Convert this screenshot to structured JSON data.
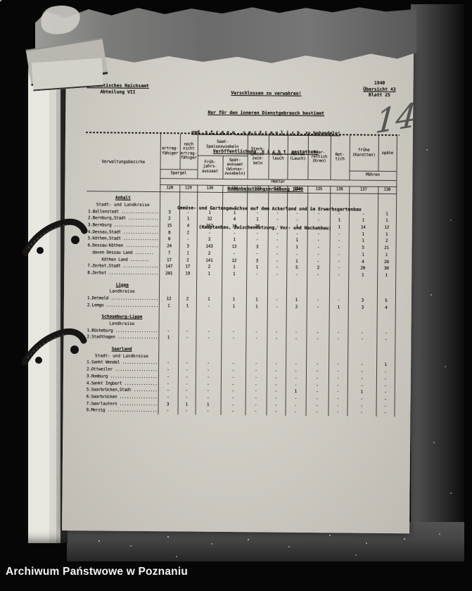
{
  "archive_label": "Archiwum Państwowe w Poznaniu",
  "colors": {
    "photo_background": "#060606",
    "page_paper": "#ccc9c1",
    "ink": "#221f1a",
    "rule": "#2e2a24",
    "archive_text": "#f4f4f4"
  },
  "page": {
    "agency": "Statistisches Reichsamt",
    "department": "Abteilung VII",
    "classification": [
      "Verschlossen zu verwahren!",
      "Nur für den inneren Dienstgebrauch bestimmt",
      "und  s t r e n g   v e r t r a u l i c h  zu behandeln!",
      "Veröffentlichung  n i c h t  gestattet!"
    ],
    "ref_year": "1940",
    "ref_overview": "Übersicht 43",
    "ref_sheet": "Blatt 25",
    "handwritten_number": "14",
    "title": "Bodenbenutzungserhebung 1940",
    "subtitle": "Gemüse- und Gartengewächse auf dem Ackerland und im Erwerbsgartenbau",
    "subtitle2": "(Hauptanbau, Zwischennutzung, Vor- und Nachanbau)"
  },
  "table": {
    "row_header": "Verwaltungsbezirke",
    "headers": {
      "spargel_yielding": "ertrag-\nfähiger",
      "spargel_not_yet": "noch\nnicht\nertrag-\nfähiger",
      "spargel_group": "Spargel",
      "saat_group": "Saat-\nSpeisezwiebeln",
      "saat_spring": "Früh-\njahrs-\naussaat",
      "saat_late": "Spät-\naussaat\n(Winter-\nzwiebeln)",
      "steck": "Steck-\nspeise-\nzwie-\nbeln",
      "knoblauch": "Knob-\nlauch",
      "porree": "Porree\n(Lauch)",
      "meerrettich": "Meer-\nrettich\n(Kren)",
      "rettich": "Ret-\ntich",
      "moehren_early": "frühe\n(Karotten)",
      "moehren_late": "späte",
      "moehren_group": "Möhren",
      "unit": "Hektar"
    },
    "col_numbers": [
      "128",
      "129",
      "130",
      "131",
      "132",
      "133",
      "134",
      "135",
      "136",
      "137",
      "138"
    ],
    "sections": [
      {
        "name": "Anhalt",
        "sub": "Stadt- und Landkreise",
        "rows": [
          {
            "name": "1.Ballenstedt ................",
            "values": [
              "3",
              "-",
              "1",
              "1",
              "-",
              "-",
              "-",
              "-",
              "-",
              "-",
              "1"
            ]
          },
          {
            "name": "2.Bernburg,Stadt .............",
            "values": [
              "2",
              "1",
              "32",
              "4",
              "1",
              "-",
              "-",
              "-",
              "1",
              "1",
              "1"
            ]
          },
          {
            "name": "3.Bernburg ...................",
            "values": [
              "15",
              "4",
              "367",
              "16",
              "20",
              "-",
              "1",
              "-",
              "1",
              "14",
              "12"
            ]
          },
          {
            "name": "4.Dessau,Stadt ...............",
            "values": [
              "8",
              "2",
              "-",
              "-",
              "-",
              "-",
              "-",
              "-",
              "-",
              "1",
              "1"
            ]
          },
          {
            "name": "5.Köthen,Stadt ...............",
            "values": [
              "8",
              "-",
              "2",
              "1",
              "-",
              "-",
              "1",
              "-",
              "-",
              "1",
              "2"
            ]
          },
          {
            "name": "6.Dessau-Köthen ..............",
            "values": [
              "24",
              "3",
              "143",
              "12",
              "3",
              "-",
              "1",
              "-",
              "-",
              "5",
              "21"
            ]
          },
          {
            "name": "  davon Dessau Land ........",
            "values": [
              "7",
              "1",
              "2",
              "-",
              "-",
              "-",
              "-",
              "-",
              "-",
              "1",
              "1"
            ]
          },
          {
            "name": "      Köthen Land ........",
            "values": [
              "17",
              "2",
              "141",
              "12",
              "3",
              "-",
              "1",
              "-",
              "-",
              "4",
              "20"
            ]
          },
          {
            "name": "7.Zerbst,Stadt ...............",
            "values": [
              "147",
              "17",
              "2",
              "1",
              "1",
              "-",
              "5",
              "2",
              "-",
              "20",
              "30"
            ]
          },
          {
            "name": "8.Zerbst .....................",
            "values": [
              "201",
              "19",
              "1",
              "1",
              "-",
              "-",
              "-",
              "-",
              "-",
              "1",
              "1"
            ]
          }
        ]
      },
      {
        "name": "Lippe",
        "sub": "Landkreise",
        "rows": [
          {
            "name": "1.Detmold ....................",
            "values": [
              "12",
              "2",
              "1",
              "1",
              "1",
              "-",
              "1",
              "-",
              "-",
              "3",
              "5"
            ]
          },
          {
            "name": "2.Lemgo ......................",
            "values": [
              "1",
              "1",
              "-",
              "1",
              "1",
              "-",
              "2",
              "-",
              "1",
              "3",
              "4"
            ]
          }
        ]
      },
      {
        "name": "Schaumburg-Lippe",
        "sub": "Landkreise",
        "rows": [
          {
            "name": "1.Bückeburg ..................",
            "values": [
              "-",
              "-",
              "-",
              "-",
              "-",
              "-",
              "-",
              "-",
              "-",
              "-",
              "-"
            ]
          },
          {
            "name": "2.Stadthagen .................",
            "values": [
              "1",
              "-",
              "-",
              "-",
              "-",
              "-",
              "-",
              "-",
              "-",
              "-",
              "-"
            ]
          }
        ]
      },
      {
        "name": "Saarland",
        "sub": "Stadt- und Landkreise",
        "rows": [
          {
            "name": "1.Sankt Wendel ...............",
            "values": [
              "-",
              "-",
              "-",
              "-",
              "-",
              "-",
              "-",
              "-",
              "-",
              "-",
              "1"
            ]
          },
          {
            "name": "2.Ottweiler ..................",
            "values": [
              "-",
              "-",
              "-",
              "-",
              "-",
              "-",
              "-",
              "-",
              "-",
              "-",
              "-"
            ]
          },
          {
            "name": "3.Homburg ....................",
            "values": [
              "-",
              "-",
              "-",
              "-",
              "-",
              "-",
              "-",
              "-",
              "-",
              "-",
              "-"
            ]
          },
          {
            "name": "4.Sankt Ingbert ..............",
            "values": [
              "-",
              "-",
              "-",
              "-",
              "-",
              "-",
              "-",
              "-",
              "-",
              "-",
              "-"
            ]
          },
          {
            "name": "5.Saarbrücken,Stadt ..........",
            "values": [
              "-",
              "-",
              "-",
              "-",
              "-",
              "-",
              "1",
              "-",
              "-",
              "1",
              "-"
            ]
          },
          {
            "name": "6.Saarbrücken ................",
            "values": [
              "-",
              "-",
              "-",
              "-",
              "-",
              "-",
              "-",
              "-",
              "-",
              "-",
              "-"
            ]
          },
          {
            "name": "7.Saarlautern ................",
            "values": [
              "3",
              "1",
              "1",
              "-",
              "-",
              "-",
              "-",
              "-",
              "-",
              "-",
              "-"
            ]
          },
          {
            "name": "9.Merzig .....................",
            "values": [
              "-",
              "-",
              "-",
              "-",
              "-",
              "-",
              "-",
              "-",
              "-",
              "-",
              "-"
            ]
          }
        ]
      }
    ]
  }
}
